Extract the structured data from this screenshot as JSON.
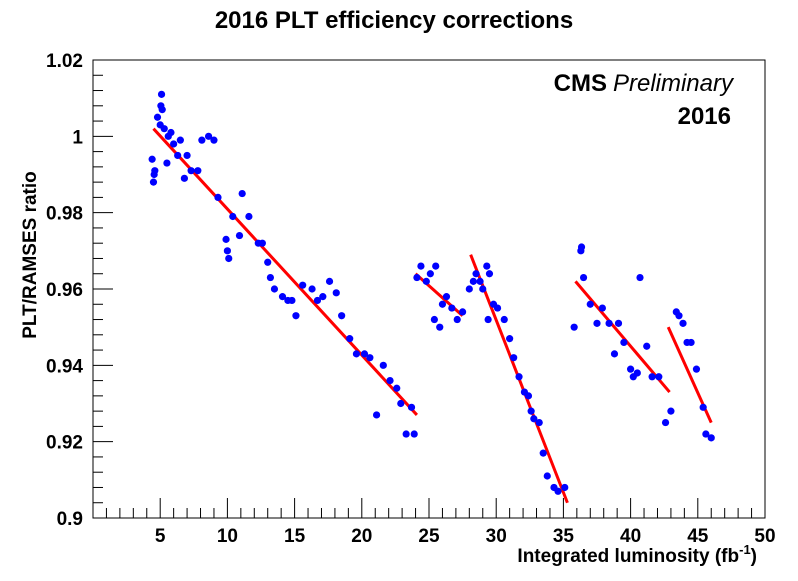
{
  "chart_data": {
    "type": "scatter",
    "title": "2016 PLT efficiency corrections",
    "xlabel_main": "Integrated luminosity (fb",
    "xlabel_sup": "-1",
    "xlabel_close": ")",
    "ylabel": "PLT/RAMSES ratio",
    "xlim": [
      0,
      50
    ],
    "ylim": [
      0.9,
      1.02
    ],
    "x_ticks": [
      5,
      10,
      15,
      20,
      25,
      30,
      35,
      40,
      45,
      50
    ],
    "y_ticks": [
      0.9,
      0.92,
      0.94,
      0.96,
      0.98,
      1,
      1.02
    ],
    "y_tick_labels": [
      "0.9",
      "0.92",
      "0.94",
      "0.96",
      "0.98",
      "1",
      "1.02"
    ],
    "annotation": {
      "bold": "CMS",
      "italic": "Preliminary",
      "year": "2016"
    },
    "grid": false,
    "colors": {
      "points": "#0000ff",
      "fits": "#ff0000",
      "axes": "#000000"
    },
    "points": [
      [
        4.4,
        0.994
      ],
      [
        4.5,
        0.988
      ],
      [
        4.55,
        0.99
      ],
      [
        4.6,
        0.991
      ],
      [
        4.8,
        1.005
      ],
      [
        5.0,
        1.003
      ],
      [
        5.1,
        1.011
      ],
      [
        5.05,
        1.008
      ],
      [
        5.15,
        1.007
      ],
      [
        5.3,
        1.002
      ],
      [
        5.6,
        1.0
      ],
      [
        5.8,
        1.001
      ],
      [
        5.5,
        0.993
      ],
      [
        6.0,
        0.998
      ],
      [
        6.3,
        0.995
      ],
      [
        6.5,
        0.999
      ],
      [
        6.8,
        0.989
      ],
      [
        7.0,
        0.995
      ],
      [
        7.3,
        0.991
      ],
      [
        7.8,
        0.991
      ],
      [
        8.1,
        0.999
      ],
      [
        8.6,
        1.0
      ],
      [
        9.0,
        0.999
      ],
      [
        9.3,
        0.984
      ],
      [
        9.9,
        0.973
      ],
      [
        10.0,
        0.97
      ],
      [
        10.1,
        0.968
      ],
      [
        10.4,
        0.979
      ],
      [
        10.9,
        0.974
      ],
      [
        11.1,
        0.985
      ],
      [
        11.6,
        0.979
      ],
      [
        12.3,
        0.972
      ],
      [
        12.6,
        0.972
      ],
      [
        13.0,
        0.967
      ],
      [
        13.2,
        0.963
      ],
      [
        13.5,
        0.96
      ],
      [
        14.1,
        0.958
      ],
      [
        14.5,
        0.957
      ],
      [
        14.8,
        0.957
      ],
      [
        15.1,
        0.953
      ],
      [
        15.6,
        0.961
      ],
      [
        16.3,
        0.96
      ],
      [
        16.7,
        0.957
      ],
      [
        17.1,
        0.958
      ],
      [
        17.6,
        0.962
      ],
      [
        18.1,
        0.959
      ],
      [
        18.5,
        0.953
      ],
      [
        19.1,
        0.947
      ],
      [
        19.6,
        0.943
      ],
      [
        20.2,
        0.943
      ],
      [
        20.6,
        0.942
      ],
      [
        21.1,
        0.927
      ],
      [
        21.6,
        0.94
      ],
      [
        22.1,
        0.936
      ],
      [
        22.6,
        0.934
      ],
      [
        22.9,
        0.93
      ],
      [
        23.3,
        0.922
      ],
      [
        23.7,
        0.929
      ],
      [
        23.9,
        0.922
      ],
      [
        24.1,
        0.963
      ],
      [
        24.4,
        0.966
      ],
      [
        24.8,
        0.962
      ],
      [
        25.1,
        0.964
      ],
      [
        25.4,
        0.952
      ],
      [
        25.5,
        0.966
      ],
      [
        25.8,
        0.95
      ],
      [
        26.0,
        0.956
      ],
      [
        26.3,
        0.958
      ],
      [
        26.7,
        0.955
      ],
      [
        27.1,
        0.952
      ],
      [
        27.5,
        0.954
      ],
      [
        28.0,
        0.96
      ],
      [
        28.3,
        0.962
      ],
      [
        28.5,
        0.964
      ],
      [
        28.8,
        0.962
      ],
      [
        29.0,
        0.96
      ],
      [
        29.3,
        0.966
      ],
      [
        29.5,
        0.964
      ],
      [
        29.4,
        0.952
      ],
      [
        29.8,
        0.956
      ],
      [
        30.1,
        0.955
      ],
      [
        30.6,
        0.952
      ],
      [
        31.0,
        0.947
      ],
      [
        31.3,
        0.942
      ],
      [
        31.7,
        0.937
      ],
      [
        32.1,
        0.933
      ],
      [
        32.4,
        0.932
      ],
      [
        32.6,
        0.928
      ],
      [
        32.8,
        0.926
      ],
      [
        33.2,
        0.925
      ],
      [
        33.5,
        0.917
      ],
      [
        33.8,
        0.911
      ],
      [
        34.3,
        0.908
      ],
      [
        34.6,
        0.907
      ],
      [
        35.1,
        0.908
      ],
      [
        35.8,
        0.95
      ],
      [
        36.3,
        0.97
      ],
      [
        36.35,
        0.971
      ],
      [
        36.5,
        0.963
      ],
      [
        37.0,
        0.956
      ],
      [
        37.5,
        0.951
      ],
      [
        37.9,
        0.955
      ],
      [
        38.4,
        0.951
      ],
      [
        38.8,
        0.943
      ],
      [
        39.1,
        0.951
      ],
      [
        39.5,
        0.946
      ],
      [
        40.0,
        0.939
      ],
      [
        40.2,
        0.937
      ],
      [
        40.5,
        0.938
      ],
      [
        40.7,
        0.963
      ],
      [
        41.2,
        0.945
      ],
      [
        41.6,
        0.937
      ],
      [
        42.1,
        0.937
      ],
      [
        42.6,
        0.925
      ],
      [
        43.0,
        0.928
      ],
      [
        43.4,
        0.954
      ],
      [
        43.6,
        0.953
      ],
      [
        43.9,
        0.951
      ],
      [
        44.2,
        0.946
      ],
      [
        44.5,
        0.946
      ],
      [
        44.9,
        0.939
      ],
      [
        45.4,
        0.929
      ],
      [
        45.6,
        0.922
      ],
      [
        46.0,
        0.921
      ]
    ],
    "fits": [
      {
        "x": [
          4.5,
          24.1
        ],
        "y": [
          1.002,
          0.927
        ]
      },
      {
        "x": [
          24.0,
          27.5
        ],
        "y": [
          0.964,
          0.953
        ]
      },
      {
        "x": [
          28.1,
          35.3
        ],
        "y": [
          0.969,
          0.904
        ]
      },
      {
        "x": [
          35.9,
          42.9
        ],
        "y": [
          0.962,
          0.933
        ]
      },
      {
        "x": [
          42.8,
          46.0
        ],
        "y": [
          0.95,
          0.925
        ]
      }
    ]
  }
}
